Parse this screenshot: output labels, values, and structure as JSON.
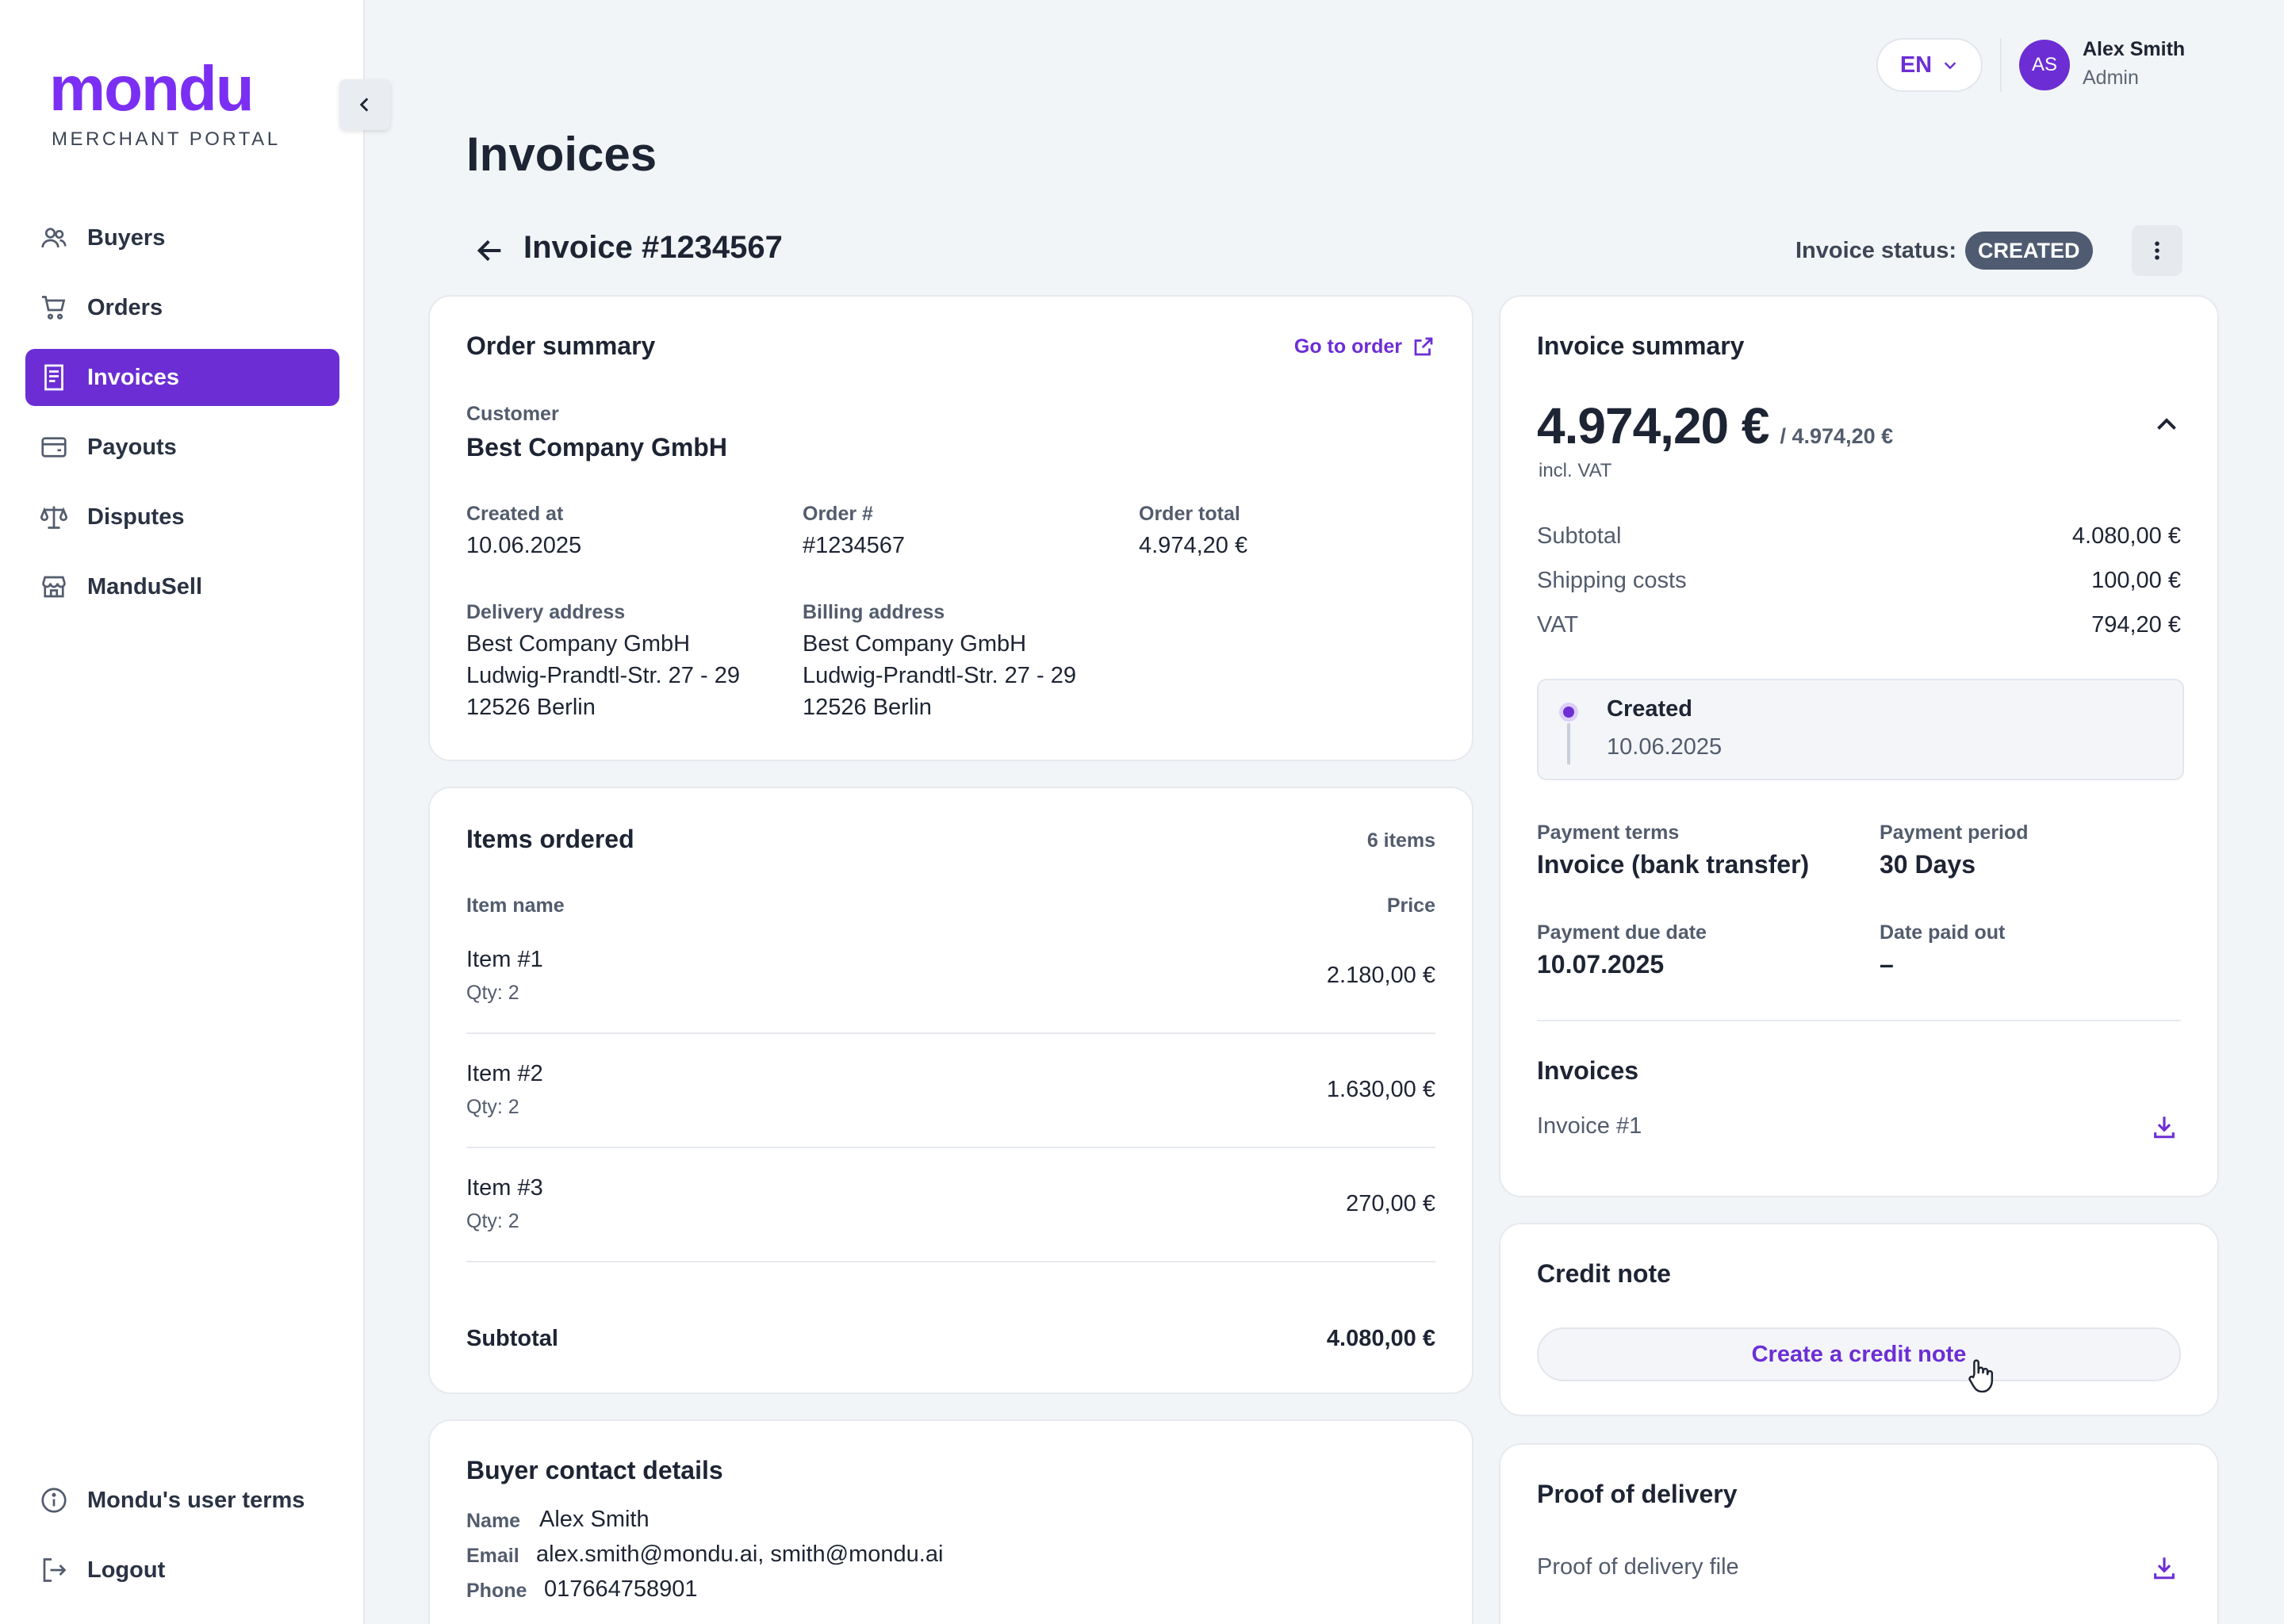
{
  "brand": {
    "logo": "mondu",
    "subtitle": "MERCHANT PORTAL"
  },
  "sidebar": {
    "items": [
      {
        "label": "Buyers",
        "icon": "users-icon"
      },
      {
        "label": "Orders",
        "icon": "cart-icon"
      },
      {
        "label": "Invoices",
        "icon": "receipt-icon",
        "active": true
      },
      {
        "label": "Payouts",
        "icon": "wallet-icon"
      },
      {
        "label": "Disputes",
        "icon": "scales-icon"
      },
      {
        "label": "ManduSell",
        "icon": "store-icon"
      }
    ],
    "bottom": [
      {
        "label": "Mondu's user terms",
        "icon": "info-icon"
      },
      {
        "label": "Logout",
        "icon": "logout-icon"
      }
    ]
  },
  "header": {
    "language": "EN",
    "user": {
      "initials": "AS",
      "name": "Alex Smith",
      "role": "Admin"
    }
  },
  "page": {
    "title": "Invoices",
    "invoice_title": "Invoice #1234567",
    "status_label": "Invoice status:",
    "status_value": "CREATED"
  },
  "order_summary": {
    "title": "Order summary",
    "go_to_order": "Go to order",
    "customer_label": "Customer",
    "customer": "Best Company GmbH",
    "created_at_label": "Created at",
    "created_at": "10.06.2025",
    "order_no_label": "Order #",
    "order_no": "#1234567",
    "order_total_label": "Order total",
    "order_total": "4.974,20 €",
    "delivery_label": "Delivery address",
    "delivery": [
      "Best Company GmbH",
      "Ludwig-Prandtl-Str. 27 - 29",
      "12526 Berlin"
    ],
    "billing_label": "Billing address",
    "billing": [
      "Best Company GmbH",
      "Ludwig-Prandtl-Str. 27 - 29",
      "12526 Berlin"
    ]
  },
  "items_ordered": {
    "title": "Items ordered",
    "count": "6 items",
    "col_name": "Item name",
    "col_price": "Price",
    "items": [
      {
        "name": "Item #1",
        "qty": "Qty: 2",
        "price": "2.180,00 €"
      },
      {
        "name": "Item #2",
        "qty": "Qty: 2",
        "price": "1.630,00 €"
      },
      {
        "name": "Item #3",
        "qty": "Qty: 2",
        "price": "270,00 €"
      }
    ],
    "subtotal_label": "Subtotal",
    "subtotal": "4.080,00 €"
  },
  "buyer_contact": {
    "title": "Buyer contact details",
    "name_label": "Name",
    "name": "Alex Smith",
    "email_label": "Email",
    "email": "alex.smith@mondu.ai, smith@mondu.ai",
    "phone_label": "Phone",
    "phone": "017664758901"
  },
  "invoice_summary": {
    "title": "Invoice summary",
    "amount": "4.974,20 €",
    "amount_of": "/ 4.974,20 €",
    "incl_vat": "incl. VAT",
    "rows": [
      {
        "label": "Subtotal",
        "value": "4.080,00 €"
      },
      {
        "label": "Shipping costs",
        "value": "100,00 €"
      },
      {
        "label": "VAT",
        "value": "794,20 €"
      }
    ],
    "timeline": {
      "status": "Created",
      "date": "10.06.2025"
    },
    "payment_terms_label": "Payment terms",
    "payment_terms": "Invoice (bank transfer)",
    "payment_period_label": "Payment period",
    "payment_period": "30 Days",
    "due_date_label": "Payment due date",
    "due_date": "10.07.2025",
    "paid_out_label": "Date paid out",
    "paid_out": "–",
    "invoices_title": "Invoices",
    "invoice_file": "Invoice #1"
  },
  "credit_note": {
    "title": "Credit note",
    "button": "Create a credit note"
  },
  "proof_of_delivery": {
    "title": "Proof of delivery",
    "file": "Proof of delivery file"
  },
  "colors": {
    "accent": "#6c2ed4",
    "status_badge": "#4f5b71",
    "background": "#f2f5f7"
  }
}
